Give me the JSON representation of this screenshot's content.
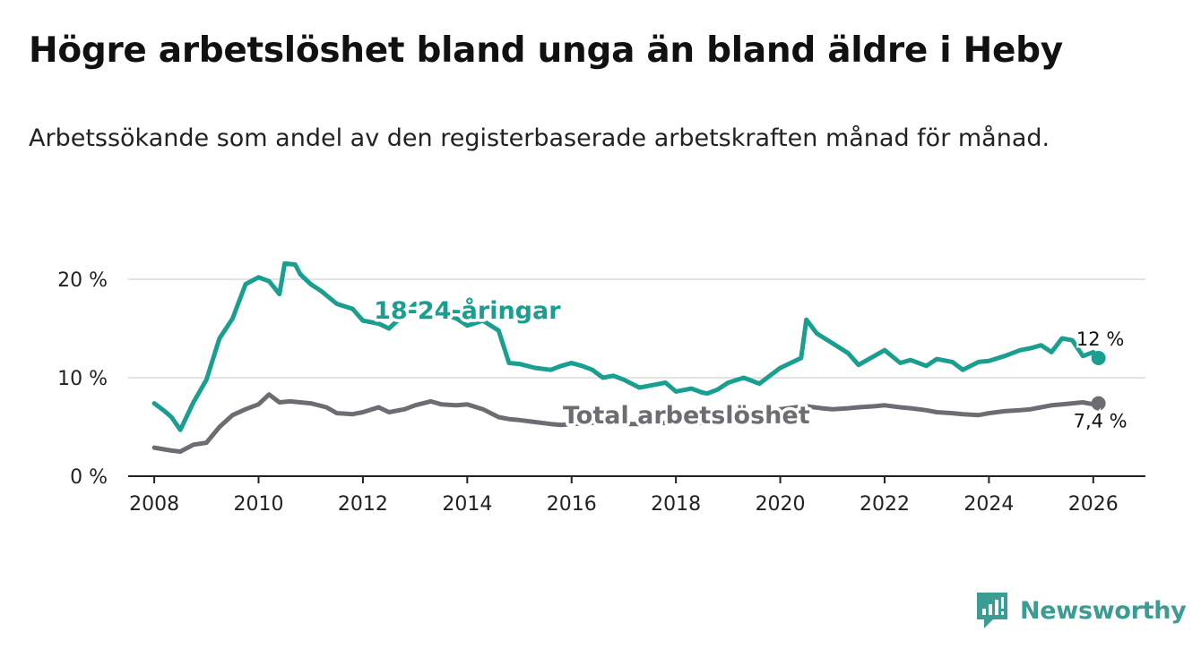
{
  "title": "Högre arbetslöshet bland unga än bland äldre i Heby",
  "subtitle": "Arbetssökande som andel av den registerbaserade arbetskraften månad för månad.",
  "brand": {
    "name": "Newsworthy",
    "icon": "newsworthy-logo-icon",
    "color": "#3a9c93"
  },
  "colors": {
    "youth": "#1a9e8f",
    "total": "#6e6b72",
    "grid": "#d9d9d9",
    "axis": "#222222"
  },
  "chart_data": {
    "type": "line",
    "title": "Högre arbetslöshet bland unga än bland äldre i Heby",
    "xlabel": "",
    "ylabel": "",
    "xlim": [
      2007.5,
      2027.0
    ],
    "ylim": [
      0,
      22
    ],
    "yticks": [
      0,
      10,
      20
    ],
    "ytick_labels": [
      "0 %",
      "10 %",
      "20 %"
    ],
    "xticks": [
      2008,
      2010,
      2012,
      2014,
      2016,
      2018,
      2020,
      2022,
      2024,
      2026
    ],
    "xtick_labels": [
      "2008",
      "2010",
      "2012",
      "2014",
      "2016",
      "2018",
      "2020",
      "2022",
      "2024",
      "2026"
    ],
    "grid": true,
    "series": [
      {
        "name": "18-24-åringar",
        "label_x": 2014.0,
        "label_y": 16.8,
        "end_label": "12 %",
        "x": [
          2008.0,
          2008.2,
          2008.33,
          2008.5,
          2008.75,
          2009.0,
          2009.25,
          2009.5,
          2009.75,
          2010.0,
          2010.2,
          2010.4,
          2010.5,
          2010.7,
          2010.8,
          2011.0,
          2011.2,
          2011.5,
          2011.8,
          2012.0,
          2012.3,
          2012.5,
          2012.8,
          2013.0,
          2013.3,
          2013.5,
          2013.8,
          2014.0,
          2014.3,
          2014.6,
          2014.8,
          2015.0,
          2015.3,
          2015.6,
          2015.8,
          2016.0,
          2016.2,
          2016.4,
          2016.6,
          2016.8,
          2017.0,
          2017.3,
          2017.5,
          2017.8,
          2018.0,
          2018.3,
          2018.5,
          2018.6,
          2018.8,
          2019.0,
          2019.3,
          2019.6,
          2019.8,
          2020.0,
          2020.2,
          2020.4,
          2020.5,
          2020.7,
          2021.0,
          2021.3,
          2021.5,
          2021.8,
          2022.0,
          2022.3,
          2022.5,
          2022.8,
          2023.0,
          2023.3,
          2023.5,
          2023.8,
          2024.0,
          2024.3,
          2024.6,
          2024.8,
          2025.0,
          2025.2,
          2025.4,
          2025.6,
          2025.8,
          2026.0,
          2026.1
        ],
        "values": [
          7.4,
          6.6,
          6.0,
          4.7,
          7.5,
          9.8,
          14.0,
          16.0,
          19.5,
          20.2,
          19.8,
          18.5,
          21.6,
          21.5,
          20.5,
          19.5,
          18.8,
          17.5,
          17.0,
          15.8,
          15.5,
          15.0,
          16.5,
          17.5,
          17.0,
          16.6,
          16.0,
          15.3,
          15.8,
          14.8,
          11.5,
          11.4,
          11.0,
          10.8,
          11.2,
          11.5,
          11.2,
          10.8,
          10.0,
          10.2,
          9.8,
          9.0,
          9.2,
          9.5,
          8.6,
          8.9,
          8.5,
          8.4,
          8.8,
          9.5,
          10.0,
          9.4,
          10.2,
          11.0,
          11.5,
          12.0,
          15.9,
          14.5,
          13.5,
          12.5,
          11.3,
          12.2,
          12.8,
          11.5,
          11.8,
          11.2,
          11.9,
          11.6,
          10.8,
          11.6,
          11.7,
          12.2,
          12.8,
          13.0,
          13.3,
          12.6,
          14.0,
          13.8,
          12.2,
          12.6,
          12.0
        ]
      },
      {
        "name": "Total arbetslöshet",
        "label_x": 2018.2,
        "label_y": 6.2,
        "end_label": "7,4 %",
        "x": [
          2008.0,
          2008.33,
          2008.5,
          2008.75,
          2009.0,
          2009.25,
          2009.5,
          2009.75,
          2010.0,
          2010.2,
          2010.4,
          2010.6,
          2010.8,
          2011.0,
          2011.3,
          2011.5,
          2011.8,
          2012.0,
          2012.3,
          2012.5,
          2012.8,
          2013.0,
          2013.3,
          2013.5,
          2013.8,
          2014.0,
          2014.3,
          2014.6,
          2014.8,
          2015.0,
          2015.3,
          2015.6,
          2015.8,
          2016.0,
          2016.3,
          2016.6,
          2016.8,
          2017.0,
          2017.3,
          2017.5,
          2017.8,
          2018.0,
          2018.3,
          2018.5,
          2018.8,
          2019.0,
          2019.3,
          2019.6,
          2019.8,
          2020.0,
          2020.3,
          2020.5,
          2020.8,
          2021.0,
          2021.3,
          2021.5,
          2021.8,
          2022.0,
          2022.3,
          2022.5,
          2022.8,
          2023.0,
          2023.3,
          2023.5,
          2023.8,
          2024.0,
          2024.3,
          2024.6,
          2024.8,
          2025.0,
          2025.2,
          2025.4,
          2025.6,
          2025.8,
          2026.0,
          2026.1
        ],
        "values": [
          2.9,
          2.6,
          2.5,
          3.2,
          3.4,
          5.0,
          6.2,
          6.8,
          7.3,
          8.3,
          7.5,
          7.6,
          7.5,
          7.4,
          7.0,
          6.4,
          6.3,
          6.5,
          7.0,
          6.5,
          6.8,
          7.2,
          7.6,
          7.3,
          7.2,
          7.3,
          6.8,
          6.0,
          5.8,
          5.7,
          5.5,
          5.3,
          5.2,
          5.3,
          5.4,
          5.5,
          5.4,
          5.3,
          5.3,
          5.4,
          5.4,
          5.6,
          5.5,
          5.4,
          5.7,
          5.8,
          6.0,
          6.2,
          6.5,
          6.8,
          7.0,
          7.1,
          6.9,
          6.8,
          6.9,
          7.0,
          7.1,
          7.2,
          7.0,
          6.9,
          6.7,
          6.5,
          6.4,
          6.3,
          6.2,
          6.4,
          6.6,
          6.7,
          6.8,
          7.0,
          7.2,
          7.3,
          7.4,
          7.5,
          7.3,
          7.4
        ]
      }
    ]
  }
}
